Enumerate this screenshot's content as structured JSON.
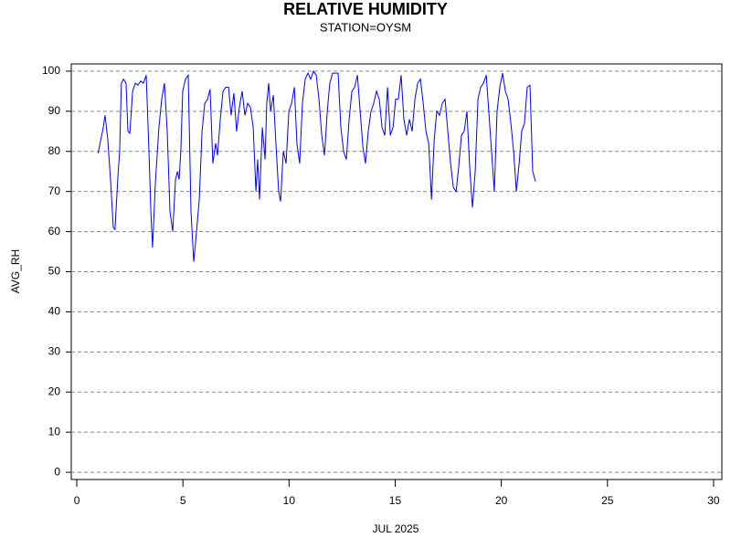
{
  "chart_data": {
    "type": "line",
    "title": "RELATIVE HUMIDITY",
    "subtitle": "STATION=OYSM",
    "x_label": "JUL 2025",
    "y_label": "AVG_RH",
    "x": [
      1.0,
      1.25,
      1.33,
      1.46,
      1.6,
      1.72,
      1.8,
      1.94,
      2.02,
      2.1,
      2.2,
      2.32,
      2.41,
      2.5,
      2.63,
      2.76,
      2.88,
      3.01,
      3.14,
      3.27,
      3.4,
      3.49,
      3.57,
      3.7,
      3.87,
      4.0,
      4.13,
      4.26,
      4.39,
      4.52,
      4.65,
      4.74,
      4.82,
      4.9,
      4.99,
      5.12,
      5.25,
      5.38,
      5.51,
      5.64,
      5.77,
      5.9,
      6.03,
      6.16,
      6.28,
      6.41,
      6.54,
      6.63,
      6.76,
      6.89,
      7.02,
      7.15,
      7.27,
      7.4,
      7.53,
      7.66,
      7.79,
      7.92,
      8.05,
      8.18,
      8.31,
      8.44,
      8.52,
      8.61,
      8.74,
      8.87,
      8.95,
      9.04,
      9.13,
      9.26,
      9.38,
      9.51,
      9.6,
      9.73,
      9.86,
      9.99,
      10.12,
      10.25,
      10.37,
      10.5,
      10.63,
      10.76,
      10.89,
      11.02,
      11.15,
      11.28,
      11.41,
      11.54,
      11.67,
      11.8,
      11.92,
      12.05,
      12.18,
      12.31,
      12.44,
      12.57,
      12.7,
      12.83,
      12.96,
      13.09,
      13.22,
      13.35,
      13.48,
      13.6,
      13.73,
      13.86,
      13.99,
      14.12,
      14.25,
      14.38,
      14.51,
      14.64,
      14.77,
      14.9,
      15.02,
      15.15,
      15.28,
      15.41,
      15.54,
      15.67,
      15.8,
      15.93,
      16.06,
      16.19,
      16.32,
      16.45,
      16.58,
      16.71,
      16.84,
      16.96,
      17.09,
      17.22,
      17.35,
      17.48,
      17.61,
      17.74,
      17.87,
      17.99,
      18.12,
      18.25,
      18.38,
      18.51,
      18.64,
      18.77,
      18.9,
      19.03,
      19.16,
      19.29,
      19.41,
      19.54,
      19.67,
      19.8,
      19.93,
      20.06,
      20.19,
      20.32,
      20.45,
      20.58,
      20.71,
      20.84,
      20.96,
      21.09,
      21.22,
      21.35,
      21.48,
      21.61
    ],
    "series": [
      {
        "name": "AVG_RH",
        "color": "#0000ff",
        "values": [
          79.5,
          86,
          89,
          83,
          72,
          61,
          60.5,
          74,
          80,
          97,
          98,
          97,
          85,
          84.5,
          95,
          97,
          96.5,
          97.5,
          97,
          99,
          80,
          65,
          56,
          72,
          86,
          93,
          97,
          85,
          65,
          60,
          73,
          75,
          73,
          80,
          95,
          98,
          99,
          65,
          52.5,
          60,
          68,
          85,
          92,
          93,
          95.5,
          77,
          82,
          79,
          88,
          95,
          96,
          96,
          89,
          94.5,
          85,
          91,
          95,
          89,
          92,
          91,
          86,
          70,
          78,
          68,
          86,
          78,
          92,
          97,
          90,
          94,
          82,
          70,
          67.5,
          80,
          77,
          90,
          92,
          96,
          82,
          77,
          92,
          98,
          99.5,
          98,
          100,
          99,
          93,
          84,
          79,
          90,
          97,
          99.5,
          99.5,
          99.5,
          86,
          80,
          78,
          88,
          95,
          96,
          99,
          90,
          81,
          77,
          85,
          90,
          92,
          95,
          93,
          86,
          84,
          96,
          84,
          86,
          93,
          93,
          99,
          88,
          84,
          88,
          85,
          93,
          97,
          98,
          92,
          85,
          82,
          68,
          83,
          90,
          89,
          92,
          93,
          85,
          77,
          71,
          70,
          76,
          84,
          85,
          90,
          76,
          66,
          75,
          93,
          96,
          97,
          99,
          90,
          80,
          70,
          90,
          96,
          99.5,
          95,
          93,
          87,
          80,
          70,
          77,
          85,
          87,
          96,
          96.5,
          75,
          72.5
        ]
      }
    ],
    "xlim": [
      -0.26,
      30.39
    ],
    "xticks": [
      0,
      5,
      10,
      15,
      20,
      25,
      30
    ],
    "ylim": [
      -1.8,
      101.8
    ],
    "yticks": [
      0,
      10,
      20,
      30,
      40,
      50,
      60,
      70,
      80,
      90,
      100
    ],
    "grid": true
  }
}
